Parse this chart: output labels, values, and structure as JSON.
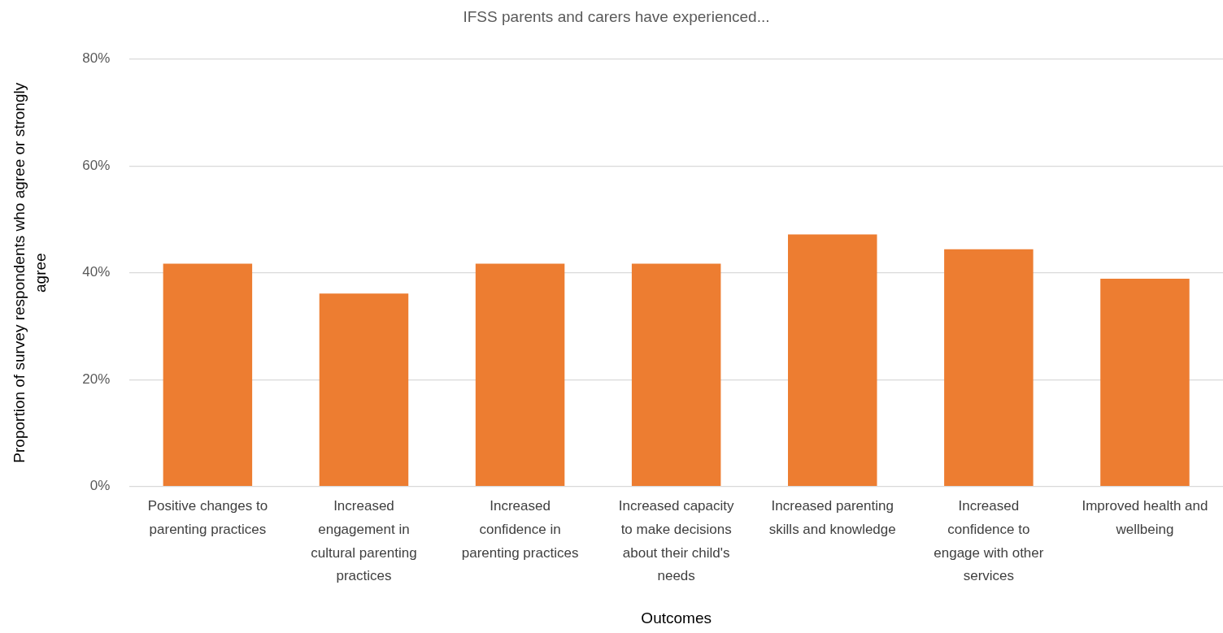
{
  "chart_data": {
    "type": "bar",
    "title": "IFSS parents and carers have experienced...",
    "xlabel": "Outcomes",
    "ylabel": "Proportion of survey respondents who agree or strongly agree",
    "categories": [
      "Positive changes to parenting practices",
      "Increased engagement in cultural parenting practices",
      "Increased confidence in parenting practices",
      "Increased capacity to make decisions about their child's needs",
      "Increased parenting skills and knowledge",
      "Increased confidence to engage with other services",
      "Improved health and wellbeing"
    ],
    "values": [
      41.7,
      36.1,
      41.7,
      41.7,
      47.2,
      44.4,
      38.9
    ],
    "color": "#ed7d31",
    "ylim": [
      0,
      80
    ],
    "yticks": [
      {
        "value": 0,
        "label": "0%"
      },
      {
        "value": 20,
        "label": "20%"
      },
      {
        "value": 40,
        "label": "40%"
      },
      {
        "value": 60,
        "label": "60%"
      },
      {
        "value": 80,
        "label": "80%"
      }
    ],
    "grid": "y"
  }
}
